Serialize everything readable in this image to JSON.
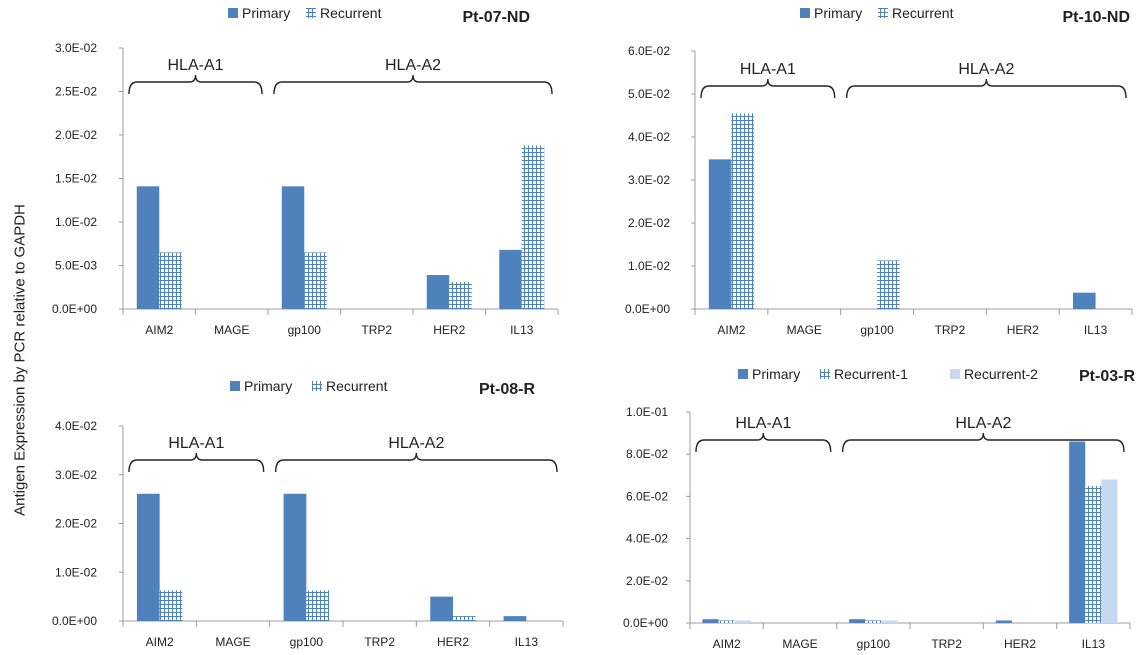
{
  "figure": {
    "ylabel": "Antigen Expression by PCR relative to GAPDH"
  },
  "colors": {
    "primary": "#4f81bd",
    "grid_pattern": "#4f81bd",
    "recurrent2": "#c6d9f1",
    "axis": "#9c9c9c",
    "bracket": "#222222"
  },
  "chart_data": [
    {
      "type": "bar",
      "title": "Pt-07-ND",
      "categories": [
        "AIM2",
        "MAGE",
        "gp100",
        "TRP2",
        "HER2",
        "IL13"
      ],
      "ylim": [
        0,
        0.03
      ],
      "yticks": [
        "0.0E+00",
        "5.0E-03",
        "1.0E-02",
        "1.5E-02",
        "2.0E-02",
        "2.5E-02",
        "3.0E-02"
      ],
      "legend_position": "top",
      "groups": [
        {
          "label": "HLA-A1",
          "from": 0,
          "to": 1
        },
        {
          "label": "HLA-A2",
          "from": 2,
          "to": 5
        }
      ],
      "series": [
        {
          "name": "Primary",
          "style": "solid",
          "values": [
            0.0141,
            0,
            0.0141,
            0,
            0.0039,
            0.0068
          ]
        },
        {
          "name": "Recurrent",
          "style": "grid",
          "values": [
            0.0065,
            0,
            0.0065,
            0,
            0.0031,
            0.0188
          ]
        }
      ]
    },
    {
      "type": "bar",
      "title": "Pt-10-ND",
      "categories": [
        "AIM2",
        "MAGE",
        "gp100",
        "TRP2",
        "HER2",
        "IL13"
      ],
      "ylim": [
        0,
        0.06
      ],
      "yticks": [
        "0.0E+00",
        "1.0E-02",
        "2.0E-02",
        "3.0E-02",
        "4.0E-02",
        "5.0E-02",
        "6.0E-02"
      ],
      "legend_position": "top",
      "groups": [
        {
          "label": "HLA-A1",
          "from": 0,
          "to": 1
        },
        {
          "label": "HLA-A2",
          "from": 2,
          "to": 5
        }
      ],
      "series": [
        {
          "name": "Primary",
          "style": "solid",
          "values": [
            0.0348,
            0,
            0,
            0,
            0,
            0.0038
          ]
        },
        {
          "name": "Recurrent",
          "style": "grid",
          "values": [
            0.0455,
            0,
            0.0113,
            0,
            0,
            0
          ]
        }
      ]
    },
    {
      "type": "bar",
      "title": "Pt-08-R",
      "categories": [
        "AIM2",
        "MAGE",
        "gp100",
        "TRP2",
        "HER2",
        "IL13"
      ],
      "ylim": [
        0,
        0.04
      ],
      "yticks": [
        "0.0E+00",
        "1.0E-02",
        "2.0E-02",
        "3.0E-02",
        "4.0E-02"
      ],
      "legend_position": "top",
      "groups": [
        {
          "label": "HLA-A1",
          "from": 0,
          "to": 1
        },
        {
          "label": "HLA-A2",
          "from": 2,
          "to": 5
        }
      ],
      "series": [
        {
          "name": "Primary",
          "style": "solid",
          "values": [
            0.0261,
            0,
            0.0261,
            0,
            0.005,
            0.001
          ]
        },
        {
          "name": "Recurrent",
          "style": "grid",
          "values": [
            0.0063,
            0,
            0.0063,
            0,
            0.001,
            0
          ]
        }
      ]
    },
    {
      "type": "bar",
      "title": "Pt-03-R",
      "categories": [
        "AIM2",
        "MAGE",
        "gp100",
        "TRP2",
        "HER2",
        "IL13"
      ],
      "ylim": [
        0,
        0.1
      ],
      "yticks": [
        "0.0E+00",
        "2.0E-02",
        "4.0E-02",
        "6.0E-02",
        "8.0E-02",
        "1.0E-01"
      ],
      "legend_position": "top",
      "groups": [
        {
          "label": "HLA-A1",
          "from": 0,
          "to": 1
        },
        {
          "label": "HLA-A2",
          "from": 2,
          "to": 5
        }
      ],
      "series": [
        {
          "name": "Primary",
          "style": "solid",
          "values": [
            0.0018,
            0,
            0.0018,
            0,
            0.0012,
            0.086
          ]
        },
        {
          "name": "Recurrent-1",
          "style": "grid",
          "values": [
            0.0012,
            0,
            0.0012,
            0,
            0,
            0.065
          ]
        },
        {
          "name": "Recurrent-2",
          "style": "light",
          "values": [
            0.0012,
            0,
            0.0012,
            0,
            0,
            0.068
          ]
        }
      ]
    }
  ]
}
